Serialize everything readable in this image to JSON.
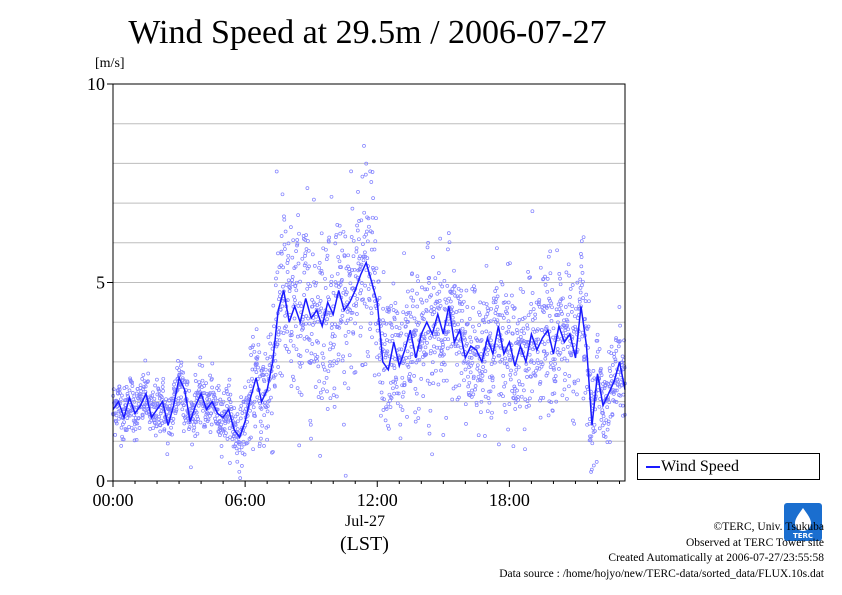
{
  "chart_data": {
    "type": "scatter",
    "title": "Wind Speed at 29.5m / 2006-07-27",
    "ylabel": "[m/s]",
    "xlabel": "(LST)",
    "x_date_label": "Jul-27",
    "ylim": [
      0,
      10
    ],
    "yticks": [
      "0",
      "5",
      "10"
    ],
    "xlim_hours": [
      0,
      23.25
    ],
    "xticks": [
      {
        "hour": 0,
        "label": "00:00"
      },
      {
        "hour": 6,
        "label": "06:00"
      },
      {
        "hour": 12,
        "label": "12:00"
      },
      {
        "hour": 18,
        "label": "18:00"
      }
    ],
    "grid": "horizontal every 1 m/s",
    "legend": {
      "position": "right",
      "entries": [
        "Wind Speed"
      ]
    },
    "series": [
      {
        "name": "Wind Speed",
        "mean_hour": [
          0,
          0.25,
          0.5,
          0.75,
          1,
          1.25,
          1.5,
          1.75,
          2,
          2.25,
          2.5,
          2.75,
          3,
          3.25,
          3.5,
          3.75,
          4,
          4.25,
          4.5,
          4.75,
          5,
          5.25,
          5.5,
          5.75,
          6,
          6.25,
          6.5,
          6.75,
          7,
          7.25,
          7.5,
          7.75,
          8,
          8.25,
          8.5,
          8.75,
          9,
          9.25,
          9.5,
          9.75,
          10,
          10.25,
          10.5,
          10.75,
          11,
          11.25,
          11.5,
          11.75,
          12,
          12.25,
          12.5,
          12.75,
          13,
          13.25,
          13.5,
          13.75,
          14,
          14.25,
          14.5,
          14.75,
          15,
          15.25,
          15.5,
          15.75,
          16,
          16.25,
          16.5,
          16.75,
          17,
          17.25,
          17.5,
          17.75,
          18,
          18.25,
          18.5,
          18.75,
          19,
          19.25,
          19.5,
          19.75,
          20,
          20.25,
          20.5,
          20.75,
          21,
          21.25,
          21.5,
          21.75,
          22,
          22.25,
          22.5,
          22.75,
          23,
          23.25
        ],
        "mean_value": [
          1.8,
          2.0,
          1.6,
          2.1,
          1.7,
          1.9,
          2.2,
          1.6,
          1.8,
          2.0,
          1.4,
          1.9,
          2.6,
          2.3,
          1.5,
          1.9,
          2.2,
          1.8,
          2.0,
          1.7,
          1.6,
          1.8,
          1.3,
          1.1,
          1.5,
          2.1,
          2.6,
          2.0,
          2.3,
          3.0,
          4.3,
          4.8,
          4.0,
          4.4,
          4.0,
          4.6,
          4.1,
          4.3,
          3.9,
          4.5,
          4.2,
          4.8,
          4.3,
          4.5,
          4.8,
          5.2,
          5.5,
          5.0,
          4.5,
          3.0,
          2.8,
          3.5,
          2.9,
          3.3,
          3.8,
          3.1,
          3.7,
          4.0,
          3.7,
          4.2,
          3.7,
          4.4,
          3.5,
          3.8,
          3.1,
          3.4,
          3.3,
          3.0,
          3.6,
          3.2,
          3.9,
          3.2,
          3.5,
          2.9,
          3.4,
          3.0,
          3.7,
          3.3,
          3.6,
          3.8,
          3.2,
          3.9,
          3.5,
          3.7,
          3.1,
          4.4,
          3.4,
          1.4,
          2.7,
          1.9,
          2.2,
          2.5,
          3.0,
          2.3
        ],
        "samples_10s": {
          "spread_hour": [
            0,
            0.25,
            0.5,
            0.75,
            1,
            1.25,
            1.5,
            1.75,
            2,
            2.25,
            2.5,
            2.75,
            3,
            3.25,
            3.5,
            3.75,
            4,
            4.25,
            4.5,
            4.75,
            5,
            5.25,
            5.5,
            5.75,
            6,
            6.25,
            6.5,
            6.75,
            7,
            7.25,
            7.5,
            7.75,
            8,
            8.25,
            8.5,
            8.75,
            9,
            9.25,
            9.5,
            9.75,
            10,
            10.25,
            10.5,
            10.75,
            11,
            11.25,
            11.5,
            11.75,
            12,
            12.25,
            12.5,
            12.75,
            13,
            13.25,
            13.5,
            13.75,
            14,
            14.25,
            14.5,
            14.75,
            15,
            15.25,
            15.5,
            15.75,
            16,
            16.25,
            16.5,
            16.75,
            17,
            17.25,
            17.5,
            17.75,
            18,
            18.25,
            18.5,
            18.75,
            19,
            19.25,
            19.5,
            19.75,
            20,
            20.25,
            20.5,
            20.75,
            21,
            21.25,
            21.5,
            21.75,
            22,
            22.25,
            22.5,
            22.75,
            23,
            23.25
          ],
          "spread_value": [
            0.35,
            0.35,
            0.35,
            0.35,
            0.35,
            0.35,
            0.35,
            0.35,
            0.35,
            0.35,
            0.35,
            0.35,
            0.5,
            0.5,
            0.35,
            0.35,
            0.35,
            0.35,
            0.35,
            0.35,
            0.35,
            0.35,
            0.4,
            0.4,
            0.45,
            0.55,
            0.65,
            0.7,
            0.9,
            1.1,
            1.2,
            1.2,
            1.2,
            1.2,
            1.2,
            1.2,
            1.2,
            1.2,
            1.2,
            1.2,
            1.2,
            1.2,
            1.2,
            1.2,
            1.2,
            1.2,
            1.2,
            1.2,
            1.0,
            0.9,
            0.9,
            0.9,
            0.9,
            0.9,
            0.9,
            0.9,
            0.9,
            0.9,
            0.9,
            0.9,
            0.9,
            0.9,
            0.9,
            0.9,
            0.9,
            0.9,
            0.9,
            0.9,
            0.9,
            0.9,
            0.9,
            0.9,
            0.9,
            0.9,
            0.9,
            0.9,
            0.9,
            0.9,
            0.9,
            0.9,
            0.9,
            0.9,
            0.9,
            0.9,
            0.9,
            0.9,
            0.9,
            0.7,
            0.6,
            0.5,
            0.6,
            0.6,
            0.6,
            0.6
          ]
        }
      }
    ]
  },
  "credits": {
    "copyright": "©TERC, Univ. Tsukuba",
    "site": "Observed at TERC Tower site",
    "created": "Created Automatically at 2006-07-27/23:55:58",
    "source": "Data source : /home/hojyo/new/TERC-data/sorted_data/FLUX.10s.dat"
  },
  "logo": {
    "text": "TERC",
    "color": "#1a6ecf"
  },
  "colors": {
    "line": "#1a1aff",
    "points": "#8080ff",
    "grid": "#bdbdbd",
    "axis": "#000000"
  }
}
